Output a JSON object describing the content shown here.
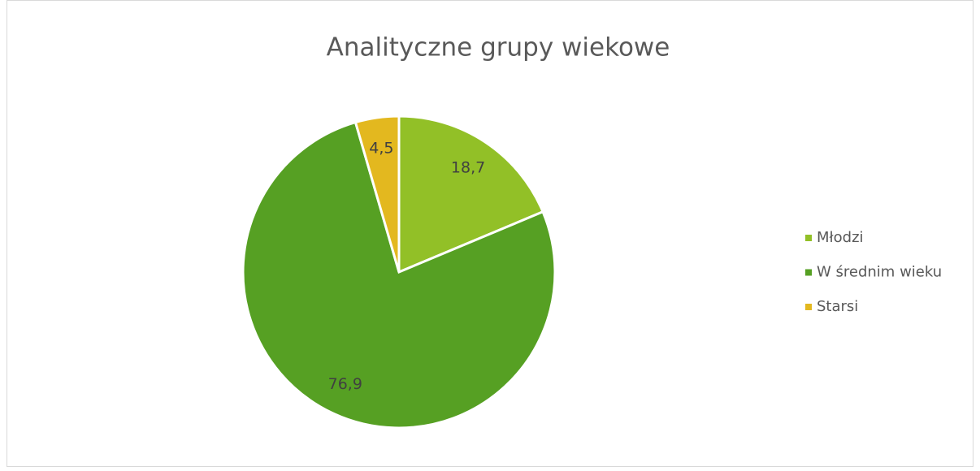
{
  "chart_data": {
    "type": "pie",
    "title": "Analityczne grupy wiekowe",
    "categories": [
      "Młodzi",
      "W średnim wieku",
      "Starsi"
    ],
    "values": [
      18.7,
      76.9,
      4.5
    ],
    "value_labels": [
      "18,7",
      "76,9",
      "4,5"
    ],
    "colors": [
      "#92c027",
      "#56a023",
      "#e3b81f"
    ],
    "legend": "right"
  }
}
